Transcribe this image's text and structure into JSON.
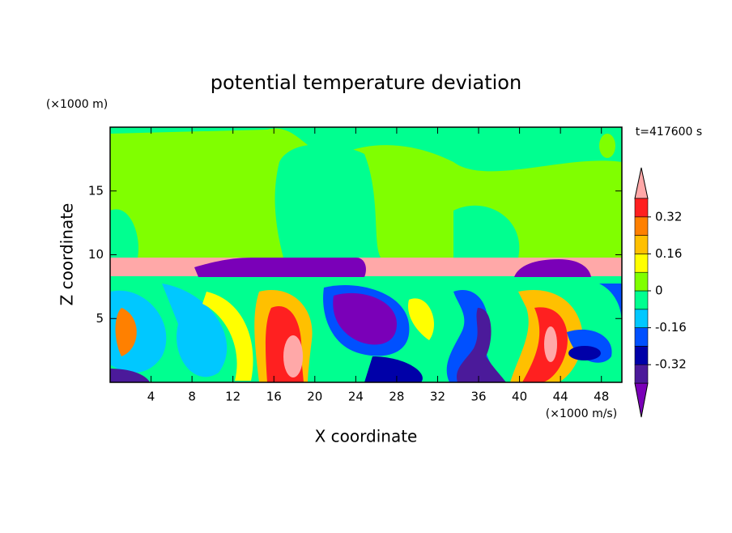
{
  "chart_data": {
    "type": "contour",
    "title": "potential temperature deviation",
    "x_label": "X coordinate",
    "y_label": "Z coordinate",
    "x_unit": "(×1000 m/s)",
    "y_unit": "(×1000 m)",
    "annotation": "t=417600 s",
    "xlim": [
      0,
      50
    ],
    "xticks": [
      4,
      8,
      12,
      16,
      20,
      24,
      28,
      32,
      36,
      40,
      44,
      48
    ],
    "ylim": [
      0,
      20
    ],
    "yticks": [
      5,
      10,
      15
    ],
    "colorbar": {
      "levels": [
        -0.4,
        -0.32,
        -0.24,
        -0.16,
        -0.08,
        0,
        0.08,
        0.16,
        0.24,
        0.32,
        0.4
      ],
      "colors": [
        "#7a00b8",
        "#4b1a9a",
        "#0000a8",
        "#0050ff",
        "#00c8ff",
        "#00ff90",
        "#80ff00",
        "#ffff00",
        "#ffc000",
        "#ff8000",
        "#ff2020",
        "#ffa8a8"
      ],
      "ticks": [
        0.32,
        0.16,
        0,
        -0.16,
        -0.32
      ]
    }
  }
}
